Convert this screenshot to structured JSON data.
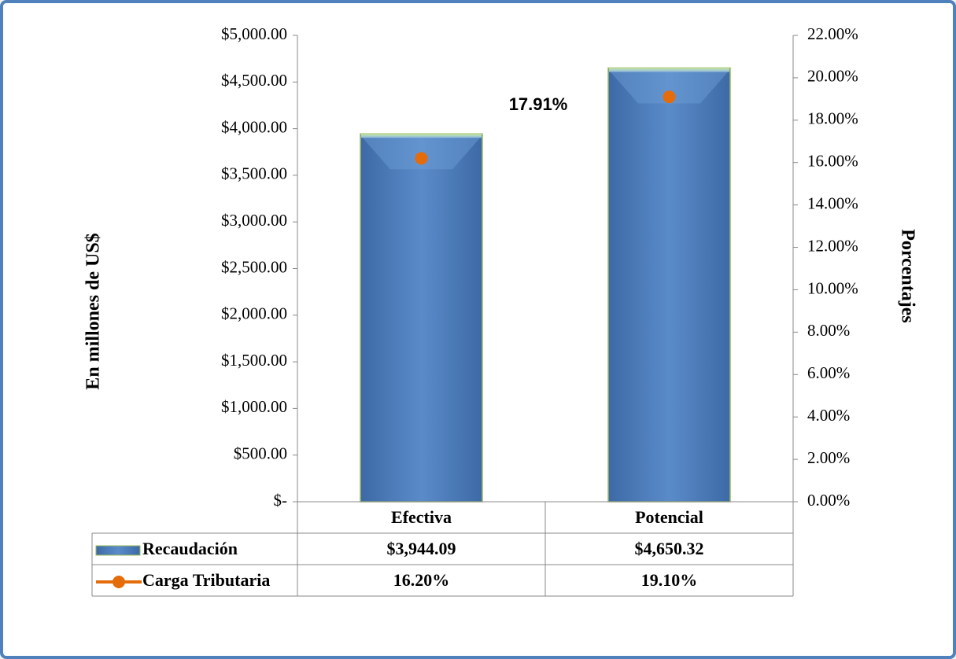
{
  "chart_data": {
    "type": "bar",
    "categories": [
      "Efectiva",
      "Potencial"
    ],
    "series": [
      {
        "name": "Recaudación",
        "type": "bar",
        "color": "#4f81bd",
        "values": [
          3944.09,
          4650.32
        ],
        "value_labels": [
          "$3,944.09",
          "$4,650.32"
        ]
      },
      {
        "name": "Carga Tributaria",
        "type": "line",
        "axis": "y2",
        "color": "#e46c0a",
        "values": [
          16.2,
          19.1
        ],
        "value_labels": [
          "16.20%",
          "19.10%"
        ]
      }
    ],
    "ylabel": "En millones de US$",
    "y2label": "Porcentajes",
    "annotation": "17.91%",
    "ylim": [
      0,
      5000
    ],
    "yticks": [
      {
        "value": 0,
        "label": "$-"
      },
      {
        "value": 500,
        "label": "$500.00"
      },
      {
        "value": 1000,
        "label": "$1,000.00"
      },
      {
        "value": 1500,
        "label": "$1,500.00"
      },
      {
        "value": 2000,
        "label": "$2,000.00"
      },
      {
        "value": 2500,
        "label": "$2,500.00"
      },
      {
        "value": 3000,
        "label": "$3,000.00"
      },
      {
        "value": 3500,
        "label": "$3,500.00"
      },
      {
        "value": 4000,
        "label": "$4,000.00"
      },
      {
        "value": 4500,
        "label": "$4,500.00"
      },
      {
        "value": 5000,
        "label": "$5,000.00"
      }
    ],
    "y2lim": [
      0,
      22
    ],
    "y2ticks": [
      {
        "value": 0,
        "label": "0.00%"
      },
      {
        "value": 2,
        "label": "2.00%"
      },
      {
        "value": 4,
        "label": "4.00%"
      },
      {
        "value": 6,
        "label": "6.00%"
      },
      {
        "value": 8,
        "label": "8.00%"
      },
      {
        "value": 10,
        "label": "10.00%"
      },
      {
        "value": 12,
        "label": "12.00%"
      },
      {
        "value": 14,
        "label": "14.00%"
      },
      {
        "value": 16,
        "label": "16.00%"
      },
      {
        "value": 18,
        "label": "18.00%"
      },
      {
        "value": 20,
        "label": "20.00%"
      },
      {
        "value": 22,
        "label": "22.00%"
      }
    ]
  }
}
